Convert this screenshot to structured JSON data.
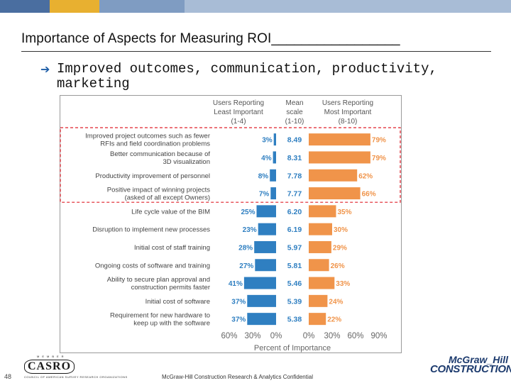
{
  "slide": {
    "title": "Importance of Aspects for Measuring ROI_________________",
    "bullet": "Improved outcomes, communication, productivity, marketing",
    "page_number": "48",
    "footer_text": "McGraw-Hill Construction Research & Analytics Confidential",
    "logo_left": {
      "small": "MEMBER",
      "big": "CASRO",
      "tag": "COUNCIL OF AMERICAN SURVEY RESEARCH ORGANIZATIONS"
    },
    "logo_right": {
      "line1": "McGraw_Hill",
      "line2": "CONSTRUCTION"
    }
  },
  "chart_data": {
    "type": "bar",
    "orientation": "horizontal-diverging",
    "headers": {
      "left": [
        "Users Reporting",
        "Least Important",
        "(1-4)"
      ],
      "middle": [
        "Mean",
        "scale",
        "(1-10)"
      ],
      "right": [
        "Users Reporting",
        "Most Important",
        "(8-10)"
      ]
    },
    "xlabel": "Percent of Importance",
    "left_ticks": [
      "60%",
      "30%",
      "0%"
    ],
    "right_ticks": [
      "0%",
      "30%",
      "60%",
      "90%"
    ],
    "left_max": 60,
    "right_max": 90,
    "left_color": "#2f7fc1",
    "right_color": "#f0944a",
    "highlight_rows": 4,
    "highlight_color": "#e0202a",
    "rows": [
      {
        "label": [
          "Improved project outcomes such as fewer",
          "RFIs and field coordination problems"
        ],
        "least": 3,
        "least_label": "3%",
        "mean": "8.49",
        "most": 79,
        "most_label": "79%"
      },
      {
        "label": [
          "Better communication because of",
          "3D visualization"
        ],
        "least": 4,
        "least_label": "4%",
        "mean": "8.31",
        "most": 79,
        "most_label": "79%"
      },
      {
        "label": [
          "Productivity improvement of personnel"
        ],
        "least": 8,
        "least_label": "8%",
        "mean": "7.78",
        "most": 62,
        "most_label": "62%"
      },
      {
        "label": [
          "Positive impact of winning projects",
          "(asked of all except Owners)"
        ],
        "least": 7,
        "least_label": "7%",
        "mean": "7.77",
        "most": 66,
        "most_label": "66%"
      },
      {
        "label": [
          "Life cycle value of the BIM"
        ],
        "least": 25,
        "least_label": "25%",
        "mean": "6.20",
        "most": 35,
        "most_label": "35%"
      },
      {
        "label": [
          "Disruption to implement new processes"
        ],
        "least": 23,
        "least_label": "23%",
        "mean": "6.19",
        "most": 30,
        "most_label": "30%"
      },
      {
        "label": [
          "Initial cost of staff training"
        ],
        "least": 28,
        "least_label": "28%",
        "mean": "5.97",
        "most": 29,
        "most_label": "29%"
      },
      {
        "label": [
          "Ongoing costs of software and training"
        ],
        "least": 27,
        "least_label": "27%",
        "mean": "5.81",
        "most": 26,
        "most_label": "26%"
      },
      {
        "label": [
          "Ability to secure plan approval and",
          "construction permits faster"
        ],
        "least": 41,
        "least_label": "41%",
        "mean": "5.46",
        "most": 33,
        "most_label": "33%"
      },
      {
        "label": [
          "Initial cost of software"
        ],
        "least": 37,
        "least_label": "37%",
        "mean": "5.39",
        "most": 24,
        "most_label": "24%"
      },
      {
        "label": [
          "Requirement for new hardware to",
          "keep up with the software"
        ],
        "least": 37,
        "least_label": "37%",
        "mean": "5.38",
        "most": 22,
        "most_label": "22%"
      }
    ]
  }
}
